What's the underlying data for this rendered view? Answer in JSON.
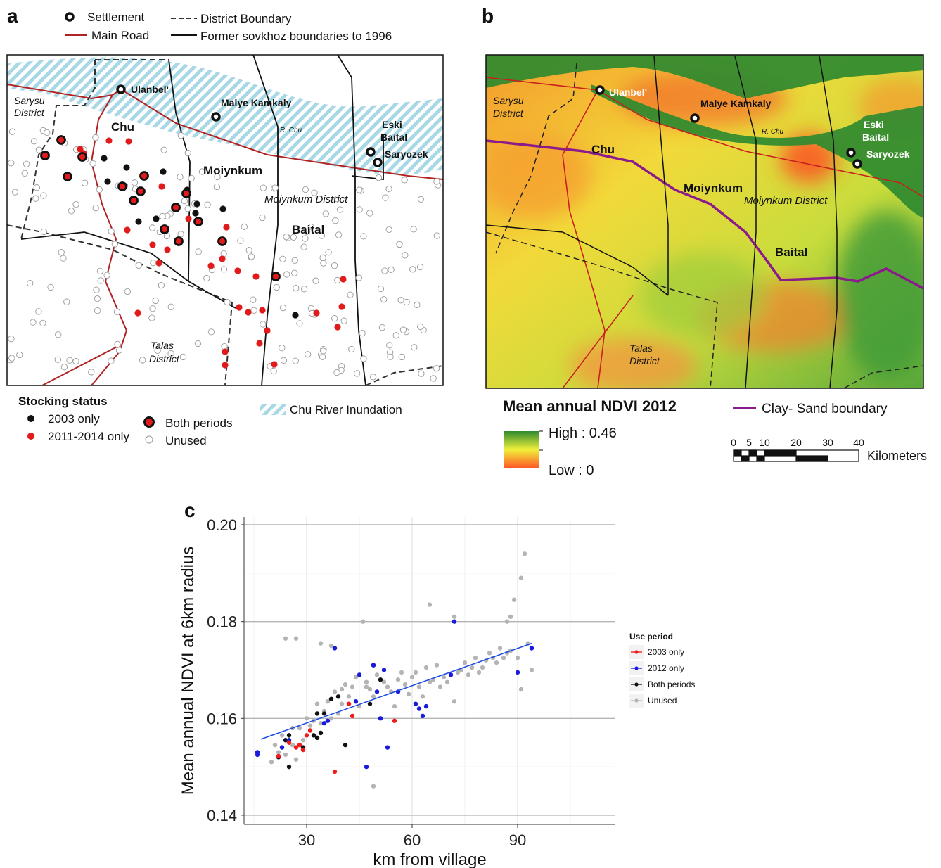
{
  "panel_labels": [
    "a",
    "b",
    "c"
  ],
  "map_a": {
    "legend": {
      "settlement": "Settlement",
      "main_road": "Main Road",
      "district_boundary": "District Boundary",
      "sovkhoz": "Former sovkhoz boundaries to 1996"
    },
    "places": [
      "Ulanbel'",
      "Malye Kamkaly",
      "R. Chu",
      "Eski",
      "Baital",
      "Saryozek",
      "Sarysu",
      "District",
      "Chu",
      "Moiynkum",
      "Moiynkum District",
      "Baital",
      "Talas",
      "District"
    ],
    "stocking": {
      "title": "Stocking status",
      "items": [
        "2003 only",
        "2011-2014 only",
        "Both periods",
        "Unused"
      ]
    },
    "inundation": "Chu River Inundation"
  },
  "map_b": {
    "places": [
      "Ulanbel'",
      "Malye Kamkaly",
      "R. Chu",
      "Eski",
      "Baital",
      "Saryozek",
      "Sarysu",
      "District",
      "Chu",
      "Moiynkum",
      "Moiynkum District",
      "Baital",
      "Talas",
      "District"
    ],
    "ndvi_title": "Mean annual NDVI 2012",
    "high": "High : 0.46",
    "low": "Low : 0",
    "boundary": "Clay- Sand boundary",
    "scale": [
      "0",
      "5",
      "10",
      "20",
      "30",
      "40"
    ],
    "scale_unit": "Kilometers"
  },
  "chart_data": {
    "type": "scatter",
    "x_label": "km from village",
    "y_label": "Mean annual NDVI at 6km radius",
    "legend_title": "Use period",
    "xlim": [
      12.2,
      117.8
    ],
    "ylim": [
      0.1381,
      0.2016
    ],
    "xticks": [
      30,
      60,
      90
    ],
    "yticks": [
      0.14,
      0.16,
      0.18,
      {
        "value": 0.2,
        "label": "0.20"
      }
    ],
    "x_minor_grid": [
      15,
      45,
      75,
      105
    ],
    "y_minor_grid": [
      0.15,
      0.17,
      0.19
    ],
    "series": [
      {
        "name": "2003 only",
        "color": "#ee1c1c",
        "x": [
          22,
          25,
          27,
          28,
          29,
          30,
          31,
          38,
          42,
          43,
          55
        ],
        "values": [
          0.1522,
          0.155,
          0.154,
          0.1545,
          0.1535,
          0.1565,
          0.1575,
          0.149,
          0.163,
          0.1605,
          0.1595
        ]
      },
      {
        "name": "2012 only",
        "color": "#1a1adc",
        "x": [
          16,
          16,
          23,
          25,
          35,
          36,
          38,
          44,
          45,
          47,
          49,
          50,
          51,
          52,
          53,
          56,
          61,
          62,
          63,
          64,
          71,
          72,
          90,
          94
        ],
        "values": [
          0.153,
          0.1525,
          0.154,
          0.1555,
          0.159,
          0.1595,
          0.1745,
          0.1635,
          0.169,
          0.15,
          0.171,
          0.1655,
          0.16,
          0.17,
          0.154,
          0.1655,
          0.163,
          0.162,
          0.1605,
          0.1625,
          0.169,
          0.18,
          0.1695,
          0.1745
        ]
      },
      {
        "name": "Both periods",
        "color": "#111111",
        "x": [
          22,
          24,
          25,
          25,
          29,
          32,
          33,
          33,
          34,
          35,
          37,
          39,
          41,
          48,
          49,
          51
        ],
        "values": [
          0.152,
          0.1555,
          0.1565,
          0.15,
          0.154,
          0.1565,
          0.161,
          0.156,
          0.157,
          0.161,
          0.164,
          0.1645,
          0.1545,
          0.163,
          0.171,
          0.168
        ]
      },
      {
        "name": "Unused",
        "color": "#b4b4b4",
        "x": [
          20,
          21,
          22,
          23,
          24,
          24,
          26,
          26,
          27,
          28,
          29,
          30,
          31,
          32,
          33,
          34,
          34,
          35,
          36,
          37,
          37,
          38,
          39,
          40,
          40,
          41,
          42,
          43,
          44,
          45,
          46,
          47,
          48,
          49,
          49,
          50,
          52,
          53,
          54,
          55,
          56,
          57,
          58,
          59,
          60,
          61,
          62,
          63,
          64,
          65,
          65,
          66,
          67,
          68,
          69,
          70,
          72,
          73,
          74,
          75,
          76,
          77,
          78,
          79,
          80,
          81,
          82,
          83,
          84,
          85,
          86,
          87,
          87,
          88,
          88,
          89,
          90,
          91,
          91,
          92,
          93,
          94,
          27,
          47,
          72
        ],
        "values": [
          0.151,
          0.1545,
          0.153,
          0.1565,
          0.1765,
          0.1525,
          0.158,
          0.1545,
          0.1765,
          0.158,
          0.1555,
          0.16,
          0.1585,
          0.1595,
          0.163,
          0.1755,
          0.159,
          0.1615,
          0.1635,
          0.175,
          0.16,
          0.1655,
          0.161,
          0.166,
          0.163,
          0.167,
          0.1645,
          0.1665,
          0.1685,
          0.1625,
          0.18,
          0.1675,
          0.166,
          0.146,
          0.1645,
          0.169,
          0.1675,
          0.1665,
          0.1655,
          0.1625,
          0.168,
          0.1695,
          0.167,
          0.165,
          0.1685,
          0.1695,
          0.1665,
          0.1645,
          0.1705,
          0.1835,
          0.1675,
          0.168,
          0.171,
          0.1665,
          0.1685,
          0.1675,
          0.181,
          0.1695,
          0.17,
          0.1715,
          0.169,
          0.1705,
          0.1725,
          0.1695,
          0.1705,
          0.172,
          0.1735,
          0.1725,
          0.1715,
          0.1745,
          0.1725,
          0.18,
          0.1735,
          0.181,
          0.174,
          0.1845,
          0.1725,
          0.189,
          0.166,
          0.194,
          0.1755,
          0.17,
          0.1515,
          0.1665,
          0.1635
        ]
      }
    ],
    "trend": {
      "color": "#1a4ae8",
      "x": [
        17,
        94
      ],
      "values": [
        0.1557,
        0.1755
      ]
    }
  }
}
